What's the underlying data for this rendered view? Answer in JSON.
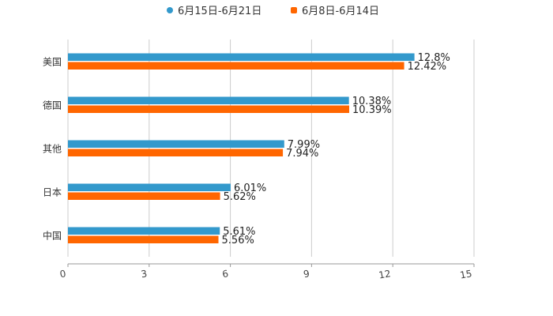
{
  "chart_data": {
    "type": "bar",
    "orientation": "horizontal",
    "title": "",
    "xlabel": "",
    "ylabel": "",
    "categories": [
      "美国",
      "德国",
      "其他",
      "日本",
      "中国"
    ],
    "series": [
      {
        "name": "6月15日-6月21日",
        "color": "#3399cc",
        "values": [
          12.8,
          10.38,
          7.99,
          6.01,
          5.61
        ],
        "labels": [
          "12.8%",
          "10.38%",
          "7.99%",
          "6.01%",
          "5.61%"
        ]
      },
      {
        "name": "6月8日-6月14日",
        "color": "#ff6600",
        "values": [
          12.42,
          10.39,
          7.94,
          5.62,
          5.56
        ],
        "labels": [
          "12.42%",
          "10.39%",
          "7.94%",
          "5.62%",
          "5.56%"
        ]
      }
    ],
    "xlim": [
      0,
      15
    ],
    "xticks": [
      "0",
      "3",
      "6",
      "9",
      "12",
      "15"
    ],
    "grid": true,
    "legend": "top-center"
  }
}
